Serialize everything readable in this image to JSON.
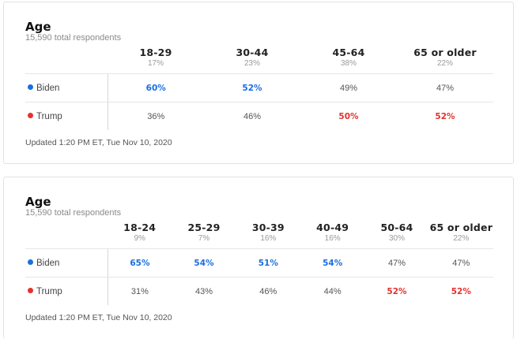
{
  "colors": {
    "biden": "#1a6fe0",
    "trump": "#e5312c"
  },
  "cards": [
    {
      "title": "Age",
      "subtitle": "15,590 total respondents",
      "columns": [
        {
          "label": "18-29",
          "pct": "17%"
        },
        {
          "label": "30-44",
          "pct": "23%"
        },
        {
          "label": "45-64",
          "pct": "38%"
        },
        {
          "label": "65 or older",
          "pct": "22%"
        }
      ],
      "rows": [
        {
          "candidate": "Biden",
          "values": [
            "60%",
            "52%",
            "49%",
            "47%"
          ],
          "winner": [
            true,
            true,
            false,
            false
          ]
        },
        {
          "candidate": "Trump",
          "values": [
            "36%",
            "46%",
            "50%",
            "52%"
          ],
          "winner": [
            false,
            false,
            true,
            true
          ]
        }
      ],
      "updated": "Updated 1:20 PM ET, Tue Nov 10, 2020"
    },
    {
      "title": "Age",
      "subtitle": "15,590 total respondents",
      "columns": [
        {
          "label": "18-24",
          "pct": "9%"
        },
        {
          "label": "25-29",
          "pct": "7%"
        },
        {
          "label": "30-39",
          "pct": "16%"
        },
        {
          "label": "40-49",
          "pct": "16%"
        },
        {
          "label": "50-64",
          "pct": "30%"
        },
        {
          "label": "65 or older",
          "pct": "22%"
        }
      ],
      "rows": [
        {
          "candidate": "Biden",
          "values": [
            "65%",
            "54%",
            "51%",
            "54%",
            "47%",
            "47%"
          ],
          "winner": [
            true,
            true,
            true,
            true,
            false,
            false
          ]
        },
        {
          "candidate": "Trump",
          "values": [
            "31%",
            "43%",
            "46%",
            "44%",
            "52%",
            "52%"
          ],
          "winner": [
            false,
            false,
            false,
            false,
            true,
            true
          ]
        }
      ],
      "updated": "Updated 1:20 PM ET, Tue Nov 10, 2020"
    }
  ]
}
